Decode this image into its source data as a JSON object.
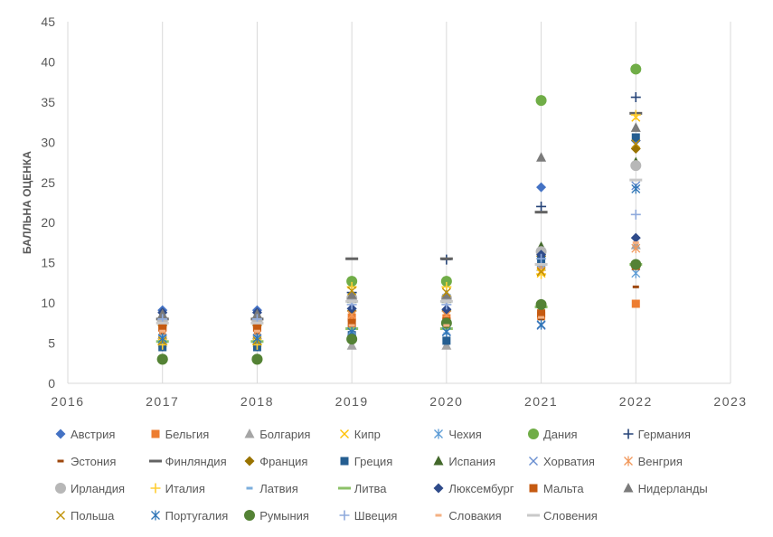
{
  "chart_data": {
    "type": "scatter",
    "ylabel": "БАЛЛЬНА ОЦЕНКА",
    "xlim": [
      2016,
      2023
    ],
    "ylim": [
      0,
      45
    ],
    "x_ticks": [
      2016,
      2017,
      2018,
      2019,
      2020,
      2021,
      2022,
      2023
    ],
    "y_ticks": [
      0,
      5,
      10,
      15,
      20,
      25,
      30,
      35,
      40,
      45
    ],
    "grid": "vertical",
    "legend": "bottom",
    "colors": {
      "text": "#595959",
      "grid": "#D9D9D9"
    },
    "x": [
      2017,
      2018,
      2019,
      2020,
      2021,
      2022
    ],
    "series": [
      {
        "name": "Австрия",
        "color": "#4472C4",
        "marker": "diamond",
        "values": [
          9.1,
          9.1,
          9.3,
          9.2,
          24.4,
          30.2
        ]
      },
      {
        "name": "Бельгия",
        "color": "#ED7D31",
        "marker": "square",
        "values": [
          6.9,
          6.9,
          8.2,
          8.1,
          8.4,
          9.9
        ]
      },
      {
        "name": "Болгария",
        "color": "#A5A5A5",
        "marker": "triangle",
        "values": [
          6.0,
          6.0,
          4.7,
          4.7,
          14.5,
          17.2
        ]
      },
      {
        "name": "Кипр",
        "color": "#FFC000",
        "marker": "x",
        "values": [
          5.0,
          5.0,
          12.3,
          12.3,
          13.7,
          33.1
        ]
      },
      {
        "name": "Чехия",
        "color": "#5B9BD5",
        "marker": "star",
        "values": [
          8.4,
          8.4,
          10.8,
          10.6,
          15.0,
          13.7
        ]
      },
      {
        "name": "Дания",
        "color": "#70AD47",
        "marker": "circle",
        "values": [
          3.0,
          3.0,
          12.7,
          12.7,
          35.2,
          39.1
        ]
      },
      {
        "name": "Германия",
        "color": "#264478",
        "marker": "plus",
        "values": [
          7.6,
          7.6,
          11.3,
          15.4,
          22.0,
          35.6
        ]
      },
      {
        "name": "Эстония",
        "color": "#9E480E",
        "marker": "dash",
        "values": [
          6.3,
          6.3,
          7.0,
          7.0,
          8.0,
          12.0
        ]
      },
      {
        "name": "Финляндия",
        "color": "#636363",
        "marker": "long-dash",
        "values": [
          8.0,
          8.0,
          15.5,
          15.5,
          21.3,
          33.6
        ]
      },
      {
        "name": "Франция",
        "color": "#997300",
        "marker": "diamond",
        "values": [
          7.2,
          7.2,
          9.0,
          9.0,
          15.8,
          29.2
        ]
      },
      {
        "name": "Греция",
        "color": "#255E91",
        "marker": "square",
        "values": [
          4.5,
          4.5,
          6.0,
          5.3,
          15.3,
          30.6
        ]
      },
      {
        "name": "Испания",
        "color": "#43682B",
        "marker": "triangle",
        "values": [
          8.2,
          8.2,
          10.5,
          10.5,
          17.0,
          27.5
        ]
      },
      {
        "name": "Хорватия",
        "color": "#698ED0",
        "marker": "x",
        "values": [
          5.5,
          5.5,
          6.5,
          6.5,
          7.2,
          24.6
        ]
      },
      {
        "name": "Венгрия",
        "color": "#F1975A",
        "marker": "star",
        "values": [
          6.5,
          6.5,
          8.5,
          8.5,
          14.0,
          16.8
        ]
      },
      {
        "name": "Ирландия",
        "color": "#B7B7B7",
        "marker": "circle",
        "values": [
          7.7,
          7.7,
          10.6,
          10.6,
          16.4,
          27.1
        ]
      },
      {
        "name": "Италия",
        "color": "#FFCD33",
        "marker": "plus",
        "values": [
          4.8,
          4.8,
          12.0,
          12.0,
          13.6,
          33.4
        ]
      },
      {
        "name": "Латвия",
        "color": "#7CAFDD",
        "marker": "dash",
        "values": [
          5.8,
          5.8,
          6.2,
          6.2,
          9.0,
          14.5
        ]
      },
      {
        "name": "Литва",
        "color": "#8CC168",
        "marker": "long-dash",
        "values": [
          5.2,
          5.2,
          6.8,
          6.8,
          9.5,
          14.8
        ]
      },
      {
        "name": "Люксембург",
        "color": "#2F4B8A",
        "marker": "diamond",
        "values": [
          8.8,
          8.8,
          9.3,
          9.2,
          16.0,
          18.1
        ]
      },
      {
        "name": "Мальта",
        "color": "#C55A11",
        "marker": "square",
        "values": [
          7.0,
          7.0,
          7.5,
          7.7,
          8.7,
          14.6
        ]
      },
      {
        "name": "Нидерланды",
        "color": "#7B7B7B",
        "marker": "triangle",
        "values": [
          8.6,
          8.6,
          11.0,
          11.0,
          28.1,
          31.8
        ]
      },
      {
        "name": "Польша",
        "color": "#BF9000",
        "marker": "x",
        "values": [
          5.3,
          5.3,
          11.5,
          11.3,
          13.9,
          29.8
        ]
      },
      {
        "name": "Португалия",
        "color": "#2E75B6",
        "marker": "star",
        "values": [
          5.6,
          5.6,
          6.4,
          6.4,
          7.3,
          24.2
        ]
      },
      {
        "name": "Румыния",
        "color": "#548235",
        "marker": "circle",
        "values": [
          3.0,
          3.0,
          5.5,
          7.5,
          9.8,
          14.8
        ]
      },
      {
        "name": "Швеция",
        "color": "#8FAADC",
        "marker": "plus",
        "values": [
          8.0,
          8.0,
          9.8,
          9.8,
          15.5,
          21.0
        ]
      },
      {
        "name": "Словакия",
        "color": "#F4B183",
        "marker": "dash",
        "values": [
          6.5,
          6.5,
          7.2,
          7.2,
          8.2,
          17.5
        ]
      },
      {
        "name": "Словения",
        "color": "#C9C9C9",
        "marker": "long-dash",
        "values": [
          7.5,
          7.5,
          10.2,
          10.2,
          14.8,
          25.3
        ]
      }
    ]
  }
}
